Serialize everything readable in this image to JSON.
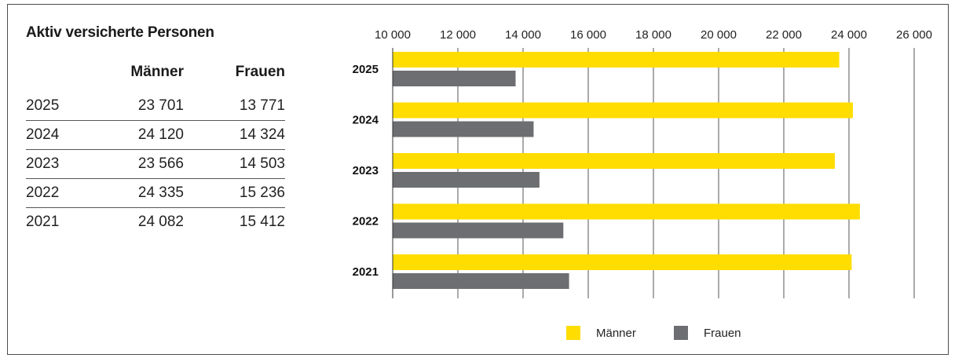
{
  "title": "Aktiv versicherte Personen",
  "table": {
    "headers": [
      "Männer",
      "Frauen"
    ],
    "rows": [
      {
        "year": "2025",
        "men": "23 701",
        "women": "13 771"
      },
      {
        "year": "2024",
        "men": "24 120",
        "women": "14 324"
      },
      {
        "year": "2023",
        "men": "23 566",
        "women": "14 503"
      },
      {
        "year": "2022",
        "men": "24 335",
        "women": "15 236"
      },
      {
        "year": "2021",
        "men": "24 082",
        "women": "15 412"
      }
    ]
  },
  "colors": {
    "men": "#ffdd00",
    "women": "#6d6e71"
  },
  "chart_data": {
    "type": "bar",
    "orientation": "horizontal",
    "categories": [
      "2025",
      "2024",
      "2023",
      "2022",
      "2021"
    ],
    "series": [
      {
        "name": "Männer",
        "values": [
          23701,
          24120,
          23566,
          24335,
          24082
        ]
      },
      {
        "name": "Frauen",
        "values": [
          13771,
          14324,
          14503,
          15236,
          15412
        ]
      }
    ],
    "xlim": [
      10000,
      26000
    ],
    "xticks": [
      10000,
      12000,
      14000,
      16000,
      18000,
      20000,
      22000,
      24000,
      26000
    ],
    "xtick_labels": [
      "10 000",
      "12 000",
      "14 000",
      "16 000",
      "18 000",
      "20 000",
      "22 000",
      "24 000",
      "26 000"
    ],
    "x_axis_position": "top",
    "grid": "vertical",
    "legend": "bottom-center"
  }
}
